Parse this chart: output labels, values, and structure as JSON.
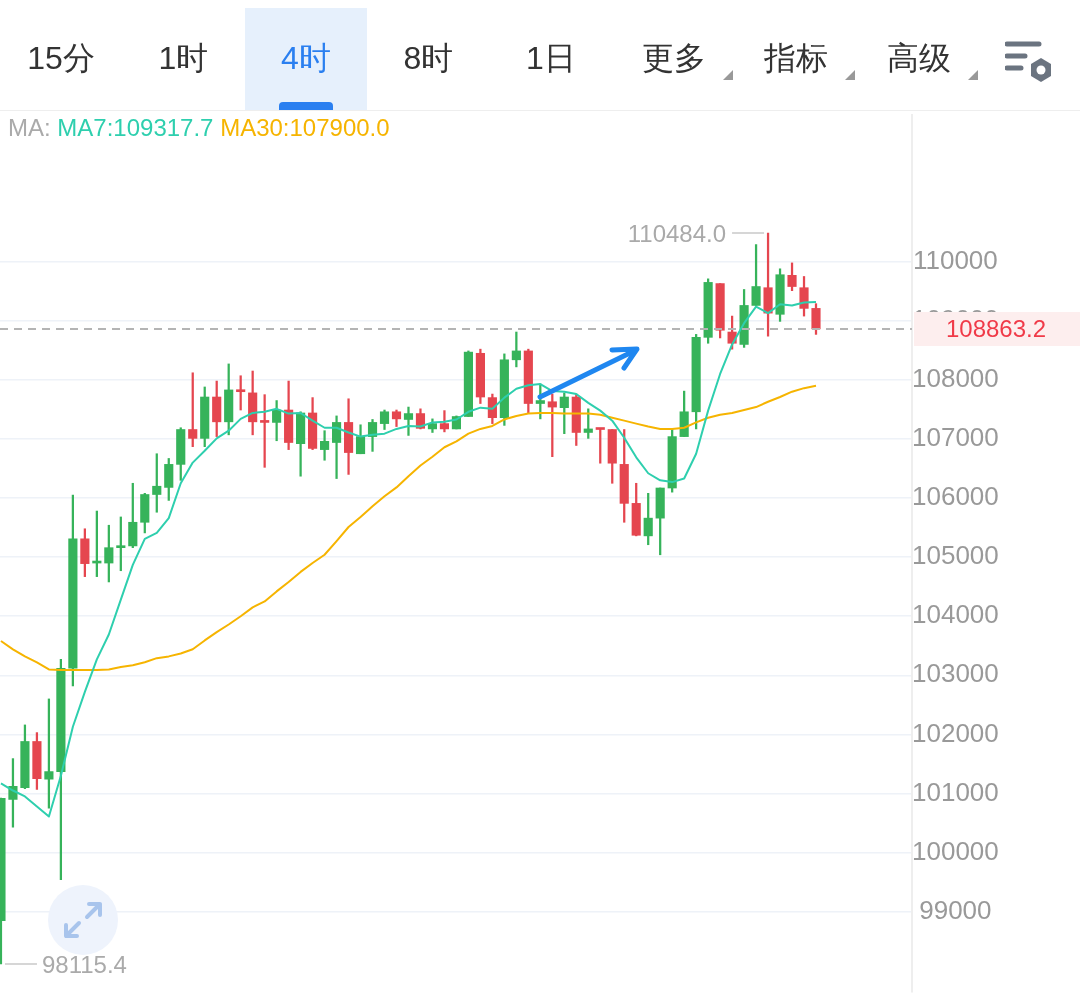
{
  "chart_data": {
    "type": "candlestick",
    "annotations": [
      "15分",
      "1时",
      "4时",
      "8时",
      "1日",
      "更多",
      "指标",
      "高级",
      "110484.0",
      "98115.4",
      "108863.2"
    ],
    "legend_title": "MA:",
    "categories": [
      null,
      null,
      null,
      null,
      null,
      null,
      null,
      null,
      null,
      null,
      null,
      null,
      null,
      null,
      null,
      null,
      null,
      null,
      null,
      null,
      null,
      null,
      null,
      null,
      null,
      null,
      null,
      null,
      null,
      null,
      null,
      null,
      null,
      null,
      null,
      null,
      null,
      null,
      null,
      null,
      null,
      null,
      null,
      null,
      null,
      null,
      null,
      null,
      null,
      null,
      null,
      null,
      null,
      null,
      null,
      null,
      null,
      null,
      null,
      null,
      null,
      null,
      null,
      null,
      null,
      null,
      null,
      null,
      null
    ],
    "ohlc": [
      [
        98848,
        100920,
        98115.4,
        100917
      ],
      [
        100900,
        101590,
        100430,
        101120
      ],
      [
        101100,
        102160,
        101080,
        101880
      ],
      [
        101880,
        102030,
        101070,
        101250
      ],
      [
        101240,
        102600,
        100750,
        101370
      ],
      [
        101370,
        103270,
        99540,
        103120
      ],
      [
        103120,
        106050,
        102820,
        105310
      ],
      [
        105310,
        105480,
        104670,
        104890
      ],
      [
        104900,
        105780,
        104670,
        104920
      ],
      [
        104900,
        105540,
        104580,
        105160
      ],
      [
        105160,
        105680,
        104770,
        105190
      ],
      [
        105190,
        106250,
        105160,
        105590
      ],
      [
        105590,
        106080,
        105410,
        106060
      ],
      [
        106060,
        106750,
        105760,
        106200
      ],
      [
        106180,
        106670,
        105960,
        106570
      ],
      [
        106570,
        107190,
        106300,
        107160
      ],
      [
        107160,
        108120,
        106870,
        107010
      ],
      [
        107010,
        107880,
        106870,
        107710
      ],
      [
        107710,
        107980,
        107040,
        107290
      ],
      [
        107290,
        108270,
        107070,
        107830
      ],
      [
        107830,
        108070,
        107490,
        107800
      ],
      [
        107780,
        108150,
        107070,
        107290
      ],
      [
        107310,
        107750,
        106520,
        107280
      ],
      [
        107280,
        107650,
        106970,
        107490
      ],
      [
        107490,
        107980,
        106820,
        106940
      ],
      [
        106920,
        107460,
        106370,
        107440
      ],
      [
        107440,
        107700,
        106820,
        106840
      ],
      [
        106820,
        107140,
        106640,
        106960
      ],
      [
        106940,
        107390,
        106330,
        107280
      ],
      [
        107280,
        107680,
        106400,
        106770
      ],
      [
        106750,
        107240,
        106750,
        107040
      ],
      [
        107040,
        107330,
        106790,
        107280
      ],
      [
        107260,
        107490,
        107160,
        107460
      ],
      [
        107460,
        107490,
        107210,
        107340
      ],
      [
        107330,
        107540,
        107060,
        107430
      ],
      [
        107430,
        107510,
        107170,
        107180
      ],
      [
        107170,
        107340,
        107110,
        107260
      ],
      [
        107260,
        107480,
        107120,
        107170
      ],
      [
        107170,
        107390,
        107170,
        107380
      ],
      [
        107380,
        108490,
        107380,
        108470
      ],
      [
        108450,
        108520,
        107600,
        107710
      ],
      [
        107700,
        107760,
        107260,
        107360
      ],
      [
        107360,
        108440,
        107230,
        108340
      ],
      [
        108340,
        108810,
        108220,
        108490
      ],
      [
        108490,
        108520,
        107440,
        107600
      ],
      [
        107600,
        107930,
        107340,
        107650
      ],
      [
        107630,
        107760,
        106700,
        107540
      ],
      [
        107530,
        107780,
        107090,
        107710
      ],
      [
        107710,
        107760,
        106890,
        107110
      ],
      [
        107110,
        107510,
        107010,
        107170
      ],
      [
        107170,
        107170,
        106590,
        107160
      ],
      [
        107160,
        107160,
        106250,
        106590
      ],
      [
        106570,
        107160,
        105590,
        105910
      ],
      [
        105910,
        106250,
        105360,
        105370
      ],
      [
        105360,
        106080,
        105210,
        105660
      ],
      [
        105660,
        106170,
        105040,
        106170
      ],
      [
        106170,
        107170,
        106100,
        107040
      ],
      [
        107040,
        107810,
        107040,
        107460
      ],
      [
        107460,
        108770,
        107170,
        108720
      ],
      [
        108720,
        109710,
        108620,
        109650
      ],
      [
        109630,
        109630,
        108710,
        108840
      ],
      [
        108810,
        109080,
        108520,
        108620
      ],
      [
        108600,
        109530,
        108550,
        109260
      ],
      [
        109260,
        110290,
        109260,
        109580
      ],
      [
        109560,
        110484.0,
        108740,
        109130
      ],
      [
        109110,
        109880,
        108990,
        109780
      ],
      [
        109770,
        109980,
        109510,
        109580
      ],
      [
        109560,
        109750,
        109080,
        109210
      ],
      [
        109210,
        109290,
        108770,
        108863.2
      ]
    ],
    "colors": [
      "#36b35a",
      "#36b35a",
      "#36b35a",
      "#e5464f",
      "#36b35a",
      "#36b35a",
      "#36b35a",
      "#e5464f",
      "#36b35a",
      "#36b35a",
      "#36b35a",
      "#36b35a",
      "#36b35a",
      "#36b35a",
      "#36b35a",
      "#36b35a",
      "#e5464f",
      "#36b35a",
      "#e5464f",
      "#36b35a",
      "#e5464f",
      "#e5464f",
      "#e5464f",
      "#36b35a",
      "#e5464f",
      "#36b35a",
      "#e5464f",
      "#36b35a",
      "#36b35a",
      "#e5464f",
      "#36b35a",
      "#36b35a",
      "#36b35a",
      "#e5464f",
      "#36b35a",
      "#e5464f",
      "#36b35a",
      "#e5464f",
      "#36b35a",
      "#36b35a",
      "#e5464f",
      "#e5464f",
      "#36b35a",
      "#36b35a",
      "#e5464f",
      "#36b35a",
      "#e5464f",
      "#36b35a",
      "#e5464f",
      "#36b35a",
      "#e5464f",
      "#e5464f",
      "#e5464f",
      "#e5464f",
      "#36b35a",
      "#36b35a",
      "#36b35a",
      "#36b35a",
      "#36b35a",
      "#36b35a",
      "#e5464f",
      "#e5464f",
      "#36b35a",
      "#36b35a",
      "#e5464f",
      "#36b35a",
      "#e5464f",
      "#e5464f",
      "#e5464f"
    ],
    "series": [
      {
        "name": "MA7:109317.7",
        "type": "line",
        "color": "#2ecfae",
        "values": [
          101170,
          101050,
          100950,
          100780,
          100610,
          101300,
          102130,
          102720,
          103270,
          103690,
          104280,
          104870,
          105310,
          105410,
          105660,
          106250,
          106600,
          106800,
          107010,
          107140,
          107340,
          107440,
          107460,
          107510,
          107430,
          107440,
          107310,
          107190,
          107190,
          107110,
          107040,
          107070,
          107090,
          107170,
          107220,
          107210,
          107280,
          107290,
          107330,
          107460,
          107530,
          107510,
          107700,
          107850,
          107910,
          107930,
          107810,
          107800,
          107760,
          107610,
          107480,
          107310,
          107020,
          106690,
          106420,
          106300,
          106270,
          106330,
          106750,
          107480,
          108100,
          108600,
          108960,
          109240,
          109130,
          109280,
          109260,
          109310,
          109320
        ]
      },
      {
        "name": "MA30:107900.0",
        "type": "line",
        "color": "#f6b400",
        "values": [
          103580,
          103440,
          103320,
          103220,
          103100,
          103090,
          103090,
          103090,
          103090,
          103100,
          103140,
          103170,
          103220,
          103290,
          103320,
          103370,
          103440,
          103590,
          103730,
          103860,
          104000,
          104150,
          104250,
          104420,
          104580,
          104750,
          104900,
          105040,
          105270,
          105510,
          105680,
          105860,
          106030,
          106180,
          106370,
          106550,
          106700,
          106860,
          106960,
          107090,
          107170,
          107220,
          107330,
          107390,
          107430,
          107440,
          107440,
          107430,
          107430,
          107430,
          107410,
          107360,
          107310,
          107260,
          107210,
          107170,
          107170,
          107190,
          107280,
          107360,
          107410,
          107440,
          107490,
          107540,
          107630,
          107710,
          107800,
          107860,
          107900.0
        ]
      }
    ],
    "ylim": [
      97650,
      112490
    ],
    "yticks": [
      99000,
      100000,
      101000,
      102000,
      103000,
      104000,
      105000,
      106000,
      107000,
      108000,
      109000,
      110000
    ],
    "ref_lines": [
      {
        "axis": "y",
        "value": 108863.2,
        "color": "#b4b4b4",
        "line_style": "dashed"
      }
    ],
    "grid": "y",
    "legend": "top left",
    "marker": "none",
    "tick_labels": "y"
  }
}
